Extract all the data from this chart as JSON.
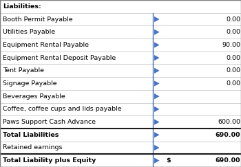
{
  "rows": [
    {
      "label": "Liabilities:",
      "value": null,
      "bold": true,
      "header": true,
      "dollar": false
    },
    {
      "label": "Booth Permit Payable",
      "value": "0.00",
      "bold": false,
      "header": false,
      "dollar": false
    },
    {
      "label": "Utilities Payable",
      "value": "0.00",
      "bold": false,
      "header": false,
      "dollar": false
    },
    {
      "label": "Equipment Rental Payable",
      "value": "90.00",
      "bold": false,
      "header": false,
      "dollar": false
    },
    {
      "label": "Equipment Rental Deposit Payable",
      "value": "0.00",
      "bold": false,
      "header": false,
      "dollar": false
    },
    {
      "label": "Tent Payable",
      "value": "0.00",
      "bold": false,
      "header": false,
      "dollar": false
    },
    {
      "label": "Signage Payable",
      "value": "0.00",
      "bold": false,
      "header": false,
      "dollar": false
    },
    {
      "label": "Beverages Payable",
      "value": null,
      "bold": false,
      "header": false,
      "dollar": false
    },
    {
      "label": "Coffee, coffee cups and lids payable",
      "value": null,
      "bold": false,
      "header": false,
      "dollar": false
    },
    {
      "label": "Paws Support Cash Advance",
      "value": "600.00",
      "bold": false,
      "header": false,
      "dollar": false
    },
    {
      "label": "Total Liabilities",
      "value": "690.00",
      "bold": true,
      "header": false,
      "dollar": false,
      "thick_top": true
    },
    {
      "label": "Retained earnings",
      "value": null,
      "bold": false,
      "header": false,
      "dollar": false
    },
    {
      "label": "Total Liability plus Equity",
      "value": "690.00",
      "bold": true,
      "header": false,
      "dollar": true,
      "thick_top": true
    }
  ],
  "col_split": 0.635,
  "blue_color": "#4472C4",
  "text_color": "#000000",
  "font_size": 6.8,
  "outer_border_color": "#7f7f7f",
  "inner_border_color": "#bfbfbf",
  "thick_border_color": "#1a1a1a",
  "bg_color": "#ffffff"
}
